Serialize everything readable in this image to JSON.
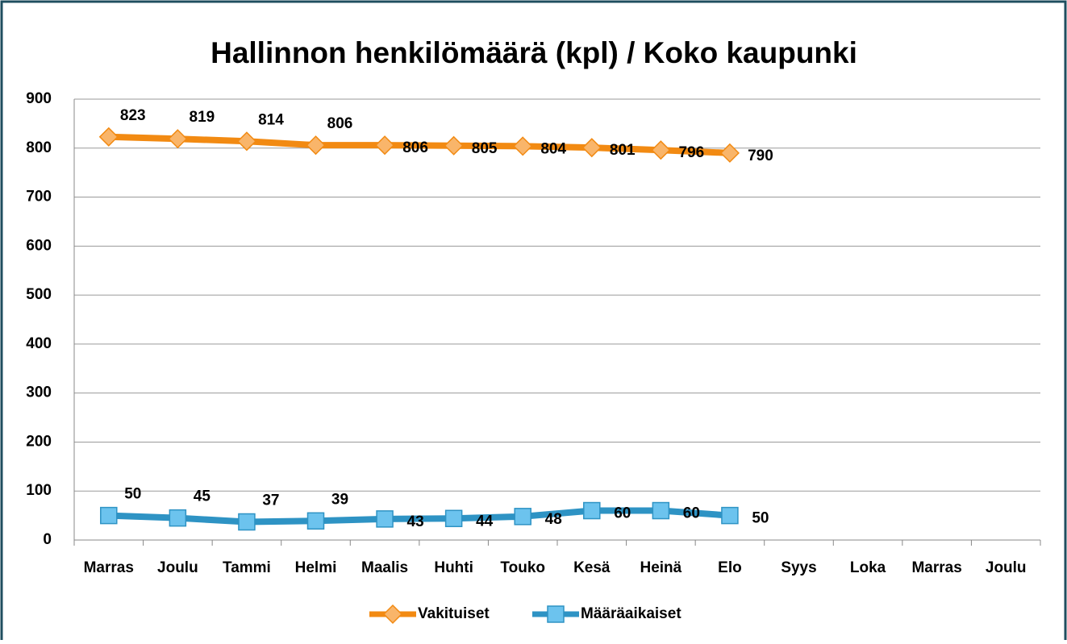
{
  "chart_data": {
    "type": "line",
    "title": "Hallinnon henkilömäärä (kpl) / Koko kaupunki",
    "categories": [
      "Marras",
      "Joulu",
      "Tammi",
      "Helmi",
      "Maalis",
      "Huhti",
      "Touko",
      "Kesä",
      "Heinä",
      "Elo",
      "Syys",
      "Loka",
      "Marras",
      "Joulu"
    ],
    "series": [
      {
        "name": "Vakituiset",
        "color": "#f28a12",
        "marker": "diamond",
        "marker_color": "#f9b56a",
        "values": [
          823,
          819,
          814,
          806,
          806,
          805,
          804,
          801,
          796,
          790,
          null,
          null,
          null,
          null
        ]
      },
      {
        "name": "Määräaikaiset",
        "color": "#2e93c4",
        "marker": "square",
        "marker_color": "#6cc3ee",
        "values": [
          50,
          45,
          37,
          39,
          43,
          44,
          48,
          60,
          60,
          50,
          null,
          null,
          null,
          null
        ]
      }
    ],
    "ylim": [
      0,
      900
    ],
    "yticks": [
      0,
      100,
      200,
      300,
      400,
      500,
      600,
      700,
      800,
      900
    ],
    "grid": true,
    "legend": "bottom"
  }
}
